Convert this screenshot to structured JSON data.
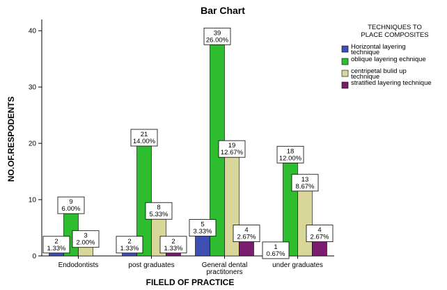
{
  "chart_data": {
    "type": "bar",
    "title": "Bar Chart",
    "xlabel": "FILELD OF PRACTICE",
    "ylabel": "NO.OF.RESPODENTS",
    "ylim": [
      0,
      42
    ],
    "yticks": [
      0,
      10,
      20,
      30,
      40
    ],
    "grid": false,
    "legend_title": [
      "TECHNIQUES TO",
      "PLACE COMPOSITES"
    ],
    "legend_position": "right",
    "categories": [
      [
        "Endodontists"
      ],
      [
        "post graduates"
      ],
      [
        "General dental",
        "practitoners"
      ],
      [
        "under graduates"
      ]
    ],
    "series": [
      {
        "name": [
          "Horizontal layering",
          "technique"
        ],
        "color": "#3f4fb1",
        "values": [
          2,
          2,
          5,
          1
        ],
        "labels": [
          [
            "2",
            "1.33%"
          ],
          [
            "2",
            "1.33%"
          ],
          [
            "5",
            "3.33%"
          ],
          [
            "1",
            "0.67%"
          ]
        ]
      },
      {
        "name": [
          "oblique layering echnique"
        ],
        "color": "#2ebd2e",
        "values": [
          9,
          21,
          39,
          18
        ],
        "labels": [
          [
            "9",
            "6.00%"
          ],
          [
            "21",
            "14.00%"
          ],
          [
            "39",
            "26.00%"
          ],
          [
            "18",
            "12.00%"
          ]
        ]
      },
      {
        "name": [
          "centripetal bulid up",
          "technique"
        ],
        "color": "#d9d69a",
        "values": [
          3,
          8,
          19,
          13
        ],
        "labels": [
          [
            "3",
            "2.00%"
          ],
          [
            "8",
            "5.33%"
          ],
          [
            "19",
            "12.67%"
          ],
          [
            "13",
            "8.67%"
          ]
        ]
      },
      {
        "name": [
          "stratified layering technique"
        ],
        "color": "#7b1d6e",
        "values": [
          0,
          2,
          4,
          4
        ],
        "labels": [
          null,
          [
            "2",
            "1.33%"
          ],
          [
            "4",
            "2.67%"
          ],
          [
            "4",
            "2.67%"
          ]
        ]
      }
    ]
  }
}
